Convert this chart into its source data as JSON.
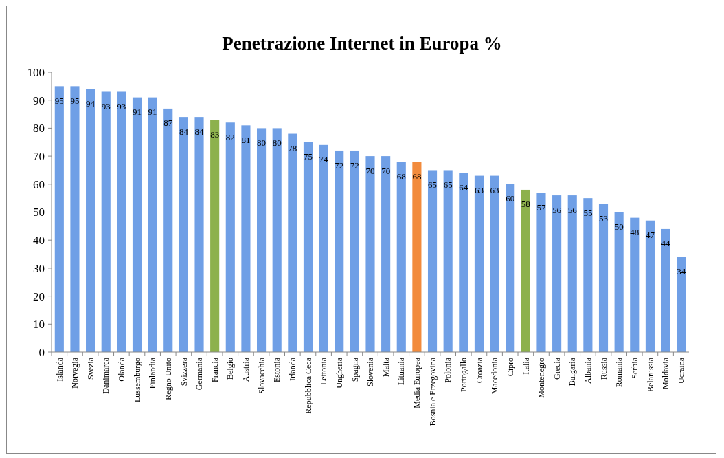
{
  "chart_data": {
    "type": "bar",
    "title": "Penetrazione Internet in Europa %",
    "categories": [
      "Islanda",
      "Norvegia",
      "Svezia",
      "Danimarca",
      "Olanda",
      "Lussemburgo",
      "Finlandia",
      "Regno Unito",
      "Svizzera",
      "Germania",
      "Francia",
      "Belgio",
      "Austria",
      "Slovacchia",
      "Estonia",
      "Irlanda",
      "Repubblica Ceca",
      "Lettonia",
      "Ungheria",
      "Spagna",
      "Slovenia",
      "Malta",
      "Lituania",
      "Media Europea",
      "Bosnia e Erzegovina",
      "Polonia",
      "Portogallo",
      "Croazia",
      "Macedonia",
      "Cipro",
      "Italia",
      "Montenegro",
      "Grecia",
      "Bulgaria",
      "Albania",
      "Russia",
      "Romania",
      "Serbia",
      "Belarussia",
      "Moldavia",
      "Ucraina"
    ],
    "values": [
      95,
      95,
      94,
      93,
      93,
      91,
      91,
      87,
      84,
      84,
      83,
      82,
      81,
      80,
      80,
      78,
      75,
      74,
      72,
      72,
      70,
      70,
      68,
      68,
      65,
      65,
      64,
      63,
      63,
      60,
      58,
      57,
      56,
      56,
      55,
      53,
      50,
      48,
      47,
      44,
      34
    ],
    "colors": [
      "#6f9fe6",
      "#6f9fe6",
      "#6f9fe6",
      "#6f9fe6",
      "#6f9fe6",
      "#6f9fe6",
      "#6f9fe6",
      "#6f9fe6",
      "#6f9fe6",
      "#6f9fe6",
      "#8db14d",
      "#6f9fe6",
      "#6f9fe6",
      "#6f9fe6",
      "#6f9fe6",
      "#6f9fe6",
      "#6f9fe6",
      "#6f9fe6",
      "#6f9fe6",
      "#6f9fe6",
      "#6f9fe6",
      "#6f9fe6",
      "#6f9fe6",
      "#f28b3c",
      "#6f9fe6",
      "#6f9fe6",
      "#6f9fe6",
      "#6f9fe6",
      "#6f9fe6",
      "#6f9fe6",
      "#8db14d",
      "#6f9fe6",
      "#6f9fe6",
      "#6f9fe6",
      "#6f9fe6",
      "#6f9fe6",
      "#6f9fe6",
      "#6f9fe6",
      "#6f9fe6",
      "#6f9fe6",
      "#6f9fe6"
    ],
    "ylim": [
      0,
      100
    ],
    "yticks": [
      0,
      10,
      20,
      30,
      40,
      50,
      60,
      70,
      80,
      90,
      100
    ],
    "data_labels": true,
    "grid": false
  }
}
